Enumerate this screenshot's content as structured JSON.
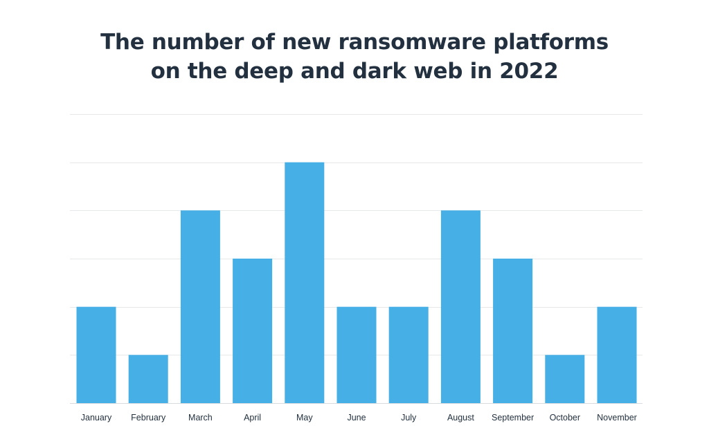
{
  "chart_data": {
    "type": "bar",
    "title": [
      "The number of new ransomware platforms",
      "on the deep and dark web in 2022"
    ],
    "xlabel": "",
    "ylabel": "",
    "categories": [
      "January",
      "February",
      "March",
      "April",
      "May",
      "June",
      "July",
      "August",
      "September",
      "October",
      "November"
    ],
    "values": [
      2,
      1,
      4,
      3,
      5,
      2,
      2,
      4,
      3,
      1,
      2
    ],
    "ylim": [
      0,
      6
    ],
    "grid": true,
    "legend": "none",
    "bar_color": "#45afe6"
  }
}
